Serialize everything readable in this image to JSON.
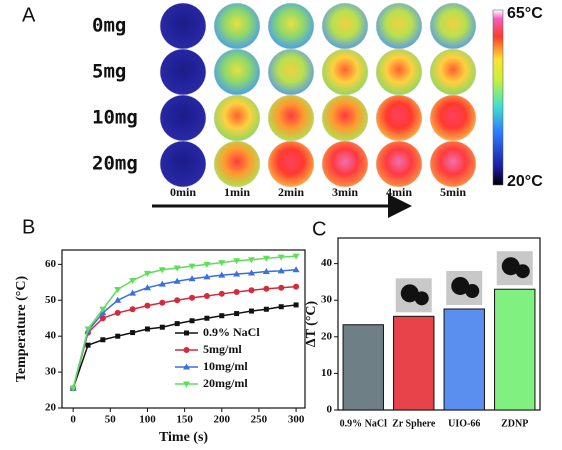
{
  "panel_a": {
    "label": "A",
    "rows": [
      "0mg",
      "5mg",
      "10mg",
      "20mg"
    ],
    "columns": [
      "0min",
      "1min",
      "2min",
      "3min",
      "4min",
      "5min"
    ],
    "colorbar_max": "65°C",
    "colorbar_min": "20°C"
  },
  "chart_data": [
    {
      "type": "line",
      "panel_label": "B",
      "x_label": "Time (s)",
      "y_label": "Temperature (°C)",
      "x": [
        0,
        20,
        40,
        60,
        80,
        100,
        120,
        140,
        160,
        180,
        200,
        220,
        240,
        260,
        280,
        300
      ],
      "series": [
        {
          "name": "0.9% NaCl",
          "color": "#111111",
          "marker": "square",
          "values": [
            25.5,
            37.5,
            39,
            40,
            41,
            42,
            42.5,
            43.5,
            44.3,
            45,
            45.7,
            46.3,
            47,
            47.5,
            48.2,
            48.7
          ]
        },
        {
          "name": "5mg/ml",
          "color": "#d42a3c",
          "marker": "circle",
          "values": [
            25.5,
            41,
            45,
            46.5,
            47.5,
            48.5,
            49.3,
            50,
            50.7,
            51.2,
            51.8,
            52.3,
            52.8,
            53.2,
            53.5,
            53.8
          ]
        },
        {
          "name": "10mg/ml",
          "color": "#3a6fe0",
          "marker": "triangle-up",
          "values": [
            25.5,
            41.5,
            46.5,
            50,
            52,
            53.5,
            54.5,
            55.3,
            56,
            56.5,
            57,
            57.3,
            57.6,
            58,
            58.2,
            58.5
          ]
        },
        {
          "name": "20mg/ml",
          "color": "#5ddf5a",
          "marker": "triangle-down",
          "values": [
            25.5,
            42,
            47.5,
            53,
            55.5,
            57.5,
            58.5,
            59,
            59.5,
            60,
            60.5,
            61,
            61.3,
            61.7,
            62,
            62.3
          ]
        }
      ],
      "xlim": [
        -15,
        312
      ],
      "xticks": [
        0,
        50,
        100,
        150,
        200,
        250,
        300
      ],
      "ylim": [
        20,
        64
      ],
      "yticks": [
        20,
        30,
        40,
        50,
        60
      ],
      "legend": "lower-right"
    },
    {
      "type": "bar",
      "panel_label": "C",
      "y_label": "ΔT (°C)",
      "categories": [
        "0.9% NaCl",
        "Zr Sphere",
        "UIO-66",
        "ZDNP"
      ],
      "values": [
        23.3,
        25.6,
        27.6,
        33
      ],
      "colors": [
        "#6f7f86",
        "#e8424a",
        "#5a8ff0",
        "#80f080"
      ],
      "ylim": [
        0,
        47
      ],
      "yticks": [
        0,
        10,
        20,
        30,
        40
      ]
    }
  ]
}
